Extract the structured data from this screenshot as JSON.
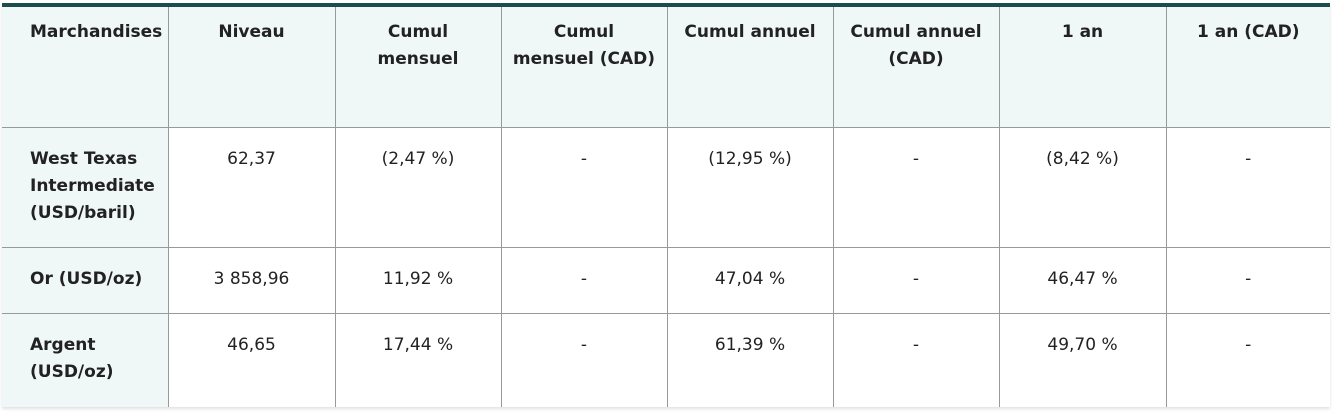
{
  "headers": [
    "Marchandises",
    "Niveau",
    "Cumul mensuel",
    "Cumul mensuel (CAD)",
    "Cumul annuel",
    "Cumul annuel (CAD)",
    "1 an",
    "1 an (CAD)"
  ],
  "rows": [
    [
      "West Texas Intermediate (USD/baril)",
      "62,37",
      "(2,47 %)",
      "-",
      "(12,95 %)",
      "-",
      "(8,42 %)",
      "-"
    ],
    [
      "Or (USD/oz)",
      "3 858,96",
      "11,92 %",
      "-",
      "47,04 %",
      "-",
      "46,47 %",
      "-"
    ],
    [
      "Argent (USD/oz)",
      "46,65",
      "17,44 %",
      "-",
      "61,39 %",
      "-",
      "49,70 %",
      "-"
    ]
  ],
  "colors": {
    "accent_border": "#1b4d4e",
    "header_bg": "#f0f8f7"
  }
}
